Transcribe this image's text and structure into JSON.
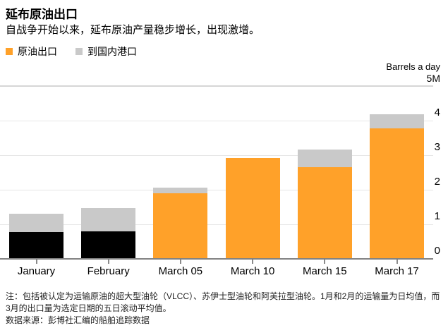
{
  "title": "延布原油出口",
  "subtitle": "自战争开始以来，延布原油产量稳步增长，出现激增。",
  "legend": [
    {
      "label": "原油出口",
      "color": "#FFA129"
    },
    {
      "label": "到国内港口",
      "color": "#C9C9C9"
    }
  ],
  "axis": {
    "unit_label": "Barrels a day",
    "max_label": "5M"
  },
  "colors": {
    "orange": "#FFA129",
    "black_bar": "#000000",
    "gray_bar": "#C9C9C9",
    "gridline": "#E6E6E6",
    "top_rule": "#D6D6D6",
    "axis_line": "#828282",
    "tick": "#8A8A8A"
  },
  "chart_data": {
    "type": "bar",
    "stacked": true,
    "title": "延布原油出口",
    "ylabel": "Barrels a day",
    "ylim": [
      0,
      5
    ],
    "yticks": [
      0,
      1,
      2,
      3,
      4
    ],
    "ytick_top_label": "5M",
    "grid": true,
    "legend_position": "top-left",
    "categories": [
      "January",
      "February",
      "March 05",
      "March 10",
      "March 15",
      "March 17"
    ],
    "series": [
      {
        "name": "原油出口",
        "values": [
          0.78,
          0.79,
          1.9,
          2.92,
          2.66,
          3.78
        ],
        "colors": [
          "#000000",
          "#000000",
          "#FFA129",
          "#FFA129",
          "#FFA129",
          "#FFA129"
        ]
      },
      {
        "name": "到国内港口",
        "values": [
          0.53,
          0.68,
          0.16,
          0.0,
          0.51,
          0.4
        ],
        "color": "#C9C9C9"
      }
    ]
  },
  "footnote": {
    "note": "注：包括被认定为运输原油的超大型油轮（VLCC）、苏伊士型油轮和阿芙拉型油轮。1月和2月的运输量为日均值，而3月的出口量为选定日期的五日滚动平均值。",
    "source": "数据来源：彭博社汇编的船舶追踪数据"
  }
}
